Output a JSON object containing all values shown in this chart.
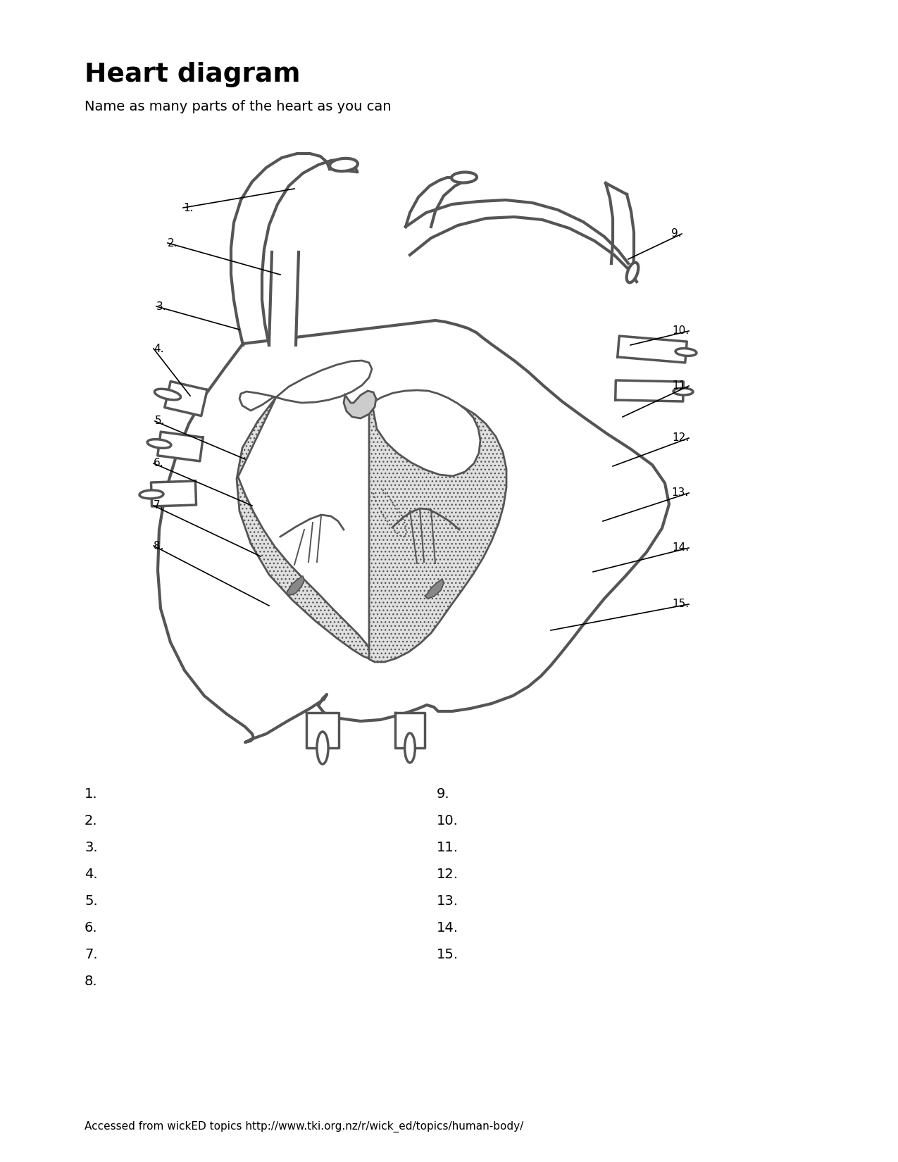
{
  "title": "Heart diagram",
  "subtitle": "Name as many parts of the heart as you can",
  "footer": "Accessed from wickED topics http://www.tki.org.nz/r/wick_ed/topics/human-body/",
  "bg_color": "#ffffff",
  "text_color": "#000000",
  "diagram_color": "#555555",
  "answer_left": [
    "1.",
    "2.",
    "3.",
    "4.",
    "5.",
    "6.",
    "7.",
    "8."
  ],
  "answer_right": [
    "9.",
    "10.",
    "11.",
    "12.",
    "13.",
    "14.",
    "15."
  ]
}
